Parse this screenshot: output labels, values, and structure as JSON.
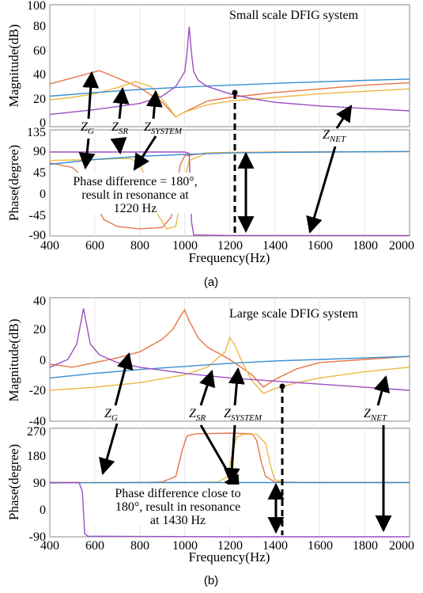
{
  "colors": {
    "Z_G": "#e8744a",
    "Z_SR": "#edb844",
    "Z_SYSTEM": "#edb844",
    "Z_NET": "#9b4fc0",
    "Z_line_blue": "#3a8fd1"
  },
  "figure_a": {
    "caption": "(a)",
    "title": "Small scale DFIG system",
    "mag_ylabel": "Magnitude(dB)",
    "phase_ylabel": "Phase(degree)",
    "xlabel": "Frequency(Hz)",
    "xticks": [
      "400",
      "600",
      "800",
      "1000",
      "1200",
      "1400",
      "1600",
      "1800",
      "2000"
    ],
    "mag_yticks": [
      "0",
      "20",
      "40",
      "60",
      "80",
      "100"
    ],
    "phase_yticks": [
      "-90",
      "-45",
      "0",
      "45",
      "90",
      "135"
    ],
    "labels": {
      "zg": {
        "main": "Z",
        "sub": "G"
      },
      "zsr": {
        "main": "Z",
        "sub": "SR"
      },
      "zsys": {
        "main": "Z",
        "sub": "SYSTEM"
      },
      "znet": {
        "main": "Z",
        "sub": "NET"
      }
    },
    "annotation": [
      "Phase difference = 180°,",
      "result in resonance at",
      "1220 Hz"
    ]
  },
  "figure_b": {
    "caption": "(b)",
    "title": "Large scale DFIG system",
    "mag_ylabel": "Magnitude(dB)",
    "phase_ylabel": "Phase(degree)",
    "xlabel": "Frequency(Hz)",
    "xticks": [
      "400",
      "600",
      "800",
      "1000",
      "1200",
      "1400",
      "1600",
      "1800",
      "2000"
    ],
    "mag_yticks": [
      "-40",
      "-20",
      "0",
      "20",
      "40"
    ],
    "phase_yticks": [
      "-90",
      "0",
      "90",
      "180",
      "270"
    ],
    "labels": {
      "zg": {
        "main": "Z",
        "sub": "G"
      },
      "zsr": {
        "main": "Z",
        "sub": "SR"
      },
      "zsys": {
        "main": "Z",
        "sub": "SYSTEM"
      },
      "znet": {
        "main": "Z",
        "sub": "NET"
      }
    },
    "annotation": [
      "Phase difference close to",
      "180°, result in resonance",
      "at 1430 Hz"
    ]
  },
  "chart_data": [
    {
      "type": "line",
      "panel": "a-magnitude",
      "xlim": [
        400,
        2000
      ],
      "ylim": [
        0,
        100
      ],
      "series": [
        {
          "name": "Z_G",
          "color": "#e8744a",
          "x": [
            400,
            500,
            620,
            700,
            800,
            900,
            960,
            1000,
            1100,
            1200,
            1400,
            1600,
            1800,
            2000
          ],
          "y": [
            35,
            40,
            46,
            40,
            32,
            20,
            8,
            12,
            21,
            24,
            28,
            31,
            34,
            36
          ]
        },
        {
          "name": "Z_SR",
          "color": "#edb844",
          "x": [
            400,
            500,
            600,
            700,
            780,
            850,
            920,
            960,
            1000,
            1100,
            1200,
            1400,
            1600,
            1800,
            2000
          ],
          "y": [
            22,
            24,
            27,
            32,
            37,
            33,
            18,
            8,
            12,
            18,
            21,
            24,
            27,
            29,
            31
          ]
        },
        {
          "name": "blue",
          "color": "#3a8fd1",
          "x": [
            400,
            600,
            800,
            1000,
            1200,
            1400,
            1600,
            1800,
            2000
          ],
          "y": [
            25,
            28,
            30.5,
            32.5,
            34,
            35.5,
            36.8,
            38,
            39
          ]
        },
        {
          "name": "Z_NET",
          "color": "#9b4fc0",
          "x": [
            400,
            600,
            800,
            900,
            960,
            1000,
            1010,
            1020,
            1030,
            1040,
            1060,
            1100,
            1200,
            1300,
            1400,
            1600,
            1800,
            2000
          ],
          "y": [
            10,
            14,
            19,
            25,
            33,
            45,
            60,
            82,
            60,
            45,
            38,
            33,
            27,
            23,
            20,
            17,
            15,
            13
          ]
        }
      ]
    },
    {
      "type": "line",
      "panel": "a-phase",
      "xlim": [
        400,
        2000
      ],
      "ylim": [
        -90,
        135
      ],
      "series": [
        {
          "name": "Z_G",
          "color": "#e8744a",
          "x": [
            400,
            500,
            560,
            600,
            640,
            700,
            800,
            900,
            940,
            960,
            980,
            1000,
            1100,
            1200,
            1400,
            1600,
            2000
          ],
          "y": [
            65,
            55,
            30,
            -20,
            -55,
            -70,
            -75,
            -72,
            -50,
            0,
            60,
            80,
            86,
            87,
            88,
            88,
            89
          ]
        },
        {
          "name": "Z_SR",
          "color": "#edb844",
          "x": [
            400,
            600,
            700,
            760,
            800,
            840,
            880,
            920,
            960,
            990,
            1020,
            1100,
            1200,
            1400,
            2000
          ],
          "y": [
            70,
            72,
            74,
            74,
            62,
            20,
            -45,
            -75,
            -70,
            10,
            70,
            86,
            87,
            88,
            89
          ]
        },
        {
          "name": "blue",
          "color": "#3a8fd1",
          "x": [
            400,
            600,
            800,
            1000,
            1200,
            1400,
            1600,
            2000
          ],
          "y": [
            62,
            72,
            79,
            83,
            86,
            87,
            88,
            89
          ]
        },
        {
          "name": "Z_NET",
          "color": "#9b4fc0",
          "x": [
            400,
            800,
            1000,
            1020,
            1030,
            1040,
            1200,
            1600,
            2000
          ],
          "y": [
            88,
            88,
            88,
            85,
            -60,
            -88,
            -89,
            -89,
            -89
          ]
        }
      ]
    },
    {
      "type": "line",
      "panel": "b-magnitude",
      "xlim": [
        400,
        2000
      ],
      "ylim": [
        -40,
        40
      ],
      "series": [
        {
          "name": "Z_G",
          "color": "#e8744a",
          "x": [
            400,
            500,
            600,
            700,
            800,
            900,
            950,
            980,
            1000,
            1020,
            1060,
            1100,
            1200,
            1300,
            1350,
            1400,
            1500,
            1600,
            1800,
            2000
          ],
          "y": [
            -3,
            -5,
            -2,
            1,
            5,
            13,
            20,
            28,
            32,
            25,
            14,
            8,
            0,
            -10,
            -18,
            -13,
            -6,
            -2,
            0,
            2
          ]
        },
        {
          "name": "Z_SR",
          "color": "#edb844",
          "x": [
            400,
            600,
            800,
            1000,
            1100,
            1180,
            1200,
            1220,
            1260,
            1300,
            1350,
            1400,
            1500,
            1600,
            1800,
            2000
          ],
          "y": [
            -20,
            -18,
            -15,
            -10,
            -5,
            5,
            14,
            10,
            -3,
            -14,
            -22,
            -19,
            -15,
            -12,
            -8,
            -5
          ]
        },
        {
          "name": "blue",
          "color": "#3a8fd1",
          "x": [
            400,
            600,
            800,
            1000,
            1200,
            1400,
            1600,
            1800,
            2000
          ],
          "y": [
            -12,
            -9,
            -6.5,
            -4.5,
            -2.5,
            -1,
            0,
            1,
            2
          ]
        },
        {
          "name": "Z_NET",
          "color": "#9b4fc0",
          "x": [
            400,
            480,
            520,
            550,
            580,
            620,
            700,
            800,
            1000,
            1200,
            1400,
            1600,
            1800,
            2000
          ],
          "y": [
            -5,
            0,
            10,
            33,
            10,
            3,
            -2,
            -5,
            -9,
            -12,
            -14,
            -16,
            -18,
            -20
          ]
        }
      ]
    },
    {
      "type": "line",
      "panel": "b-phase",
      "xlim": [
        400,
        2000
      ],
      "ylim": [
        -90,
        270
      ],
      "series": [
        {
          "name": "Z_G",
          "color": "#e8744a",
          "x": [
            400,
            800,
            900,
            960,
            990,
            1010,
            1050,
            1200,
            1300,
            1320,
            1340,
            1360,
            1400,
            1600,
            2000
          ],
          "y": [
            90,
            90,
            92,
            110,
            200,
            245,
            252,
            254,
            252,
            230,
            160,
            110,
            92,
            90,
            90
          ]
        },
        {
          "name": "Z_SR",
          "color": "#edb844",
          "x": [
            400,
            1000,
            1150,
            1190,
            1210,
            1230,
            1260,
            1320,
            1360,
            1380,
            1400,
            1440,
            1600,
            2000
          ],
          "y": [
            90,
            90,
            92,
            110,
            180,
            240,
            250,
            250,
            220,
            150,
            100,
            91,
            90,
            90
          ]
        },
        {
          "name": "blue",
          "color": "#3a8fd1",
          "x": [
            400,
            800,
            1200,
            1600,
            2000
          ],
          "y": [
            89,
            90,
            90,
            90,
            90
          ]
        },
        {
          "name": "Z_NET",
          "color": "#9b4fc0",
          "x": [
            400,
            530,
            545,
            555,
            570,
            800,
            1200,
            2000
          ],
          "y": [
            90,
            90,
            60,
            -80,
            -88,
            -89,
            -90,
            -90
          ]
        }
      ]
    }
  ]
}
